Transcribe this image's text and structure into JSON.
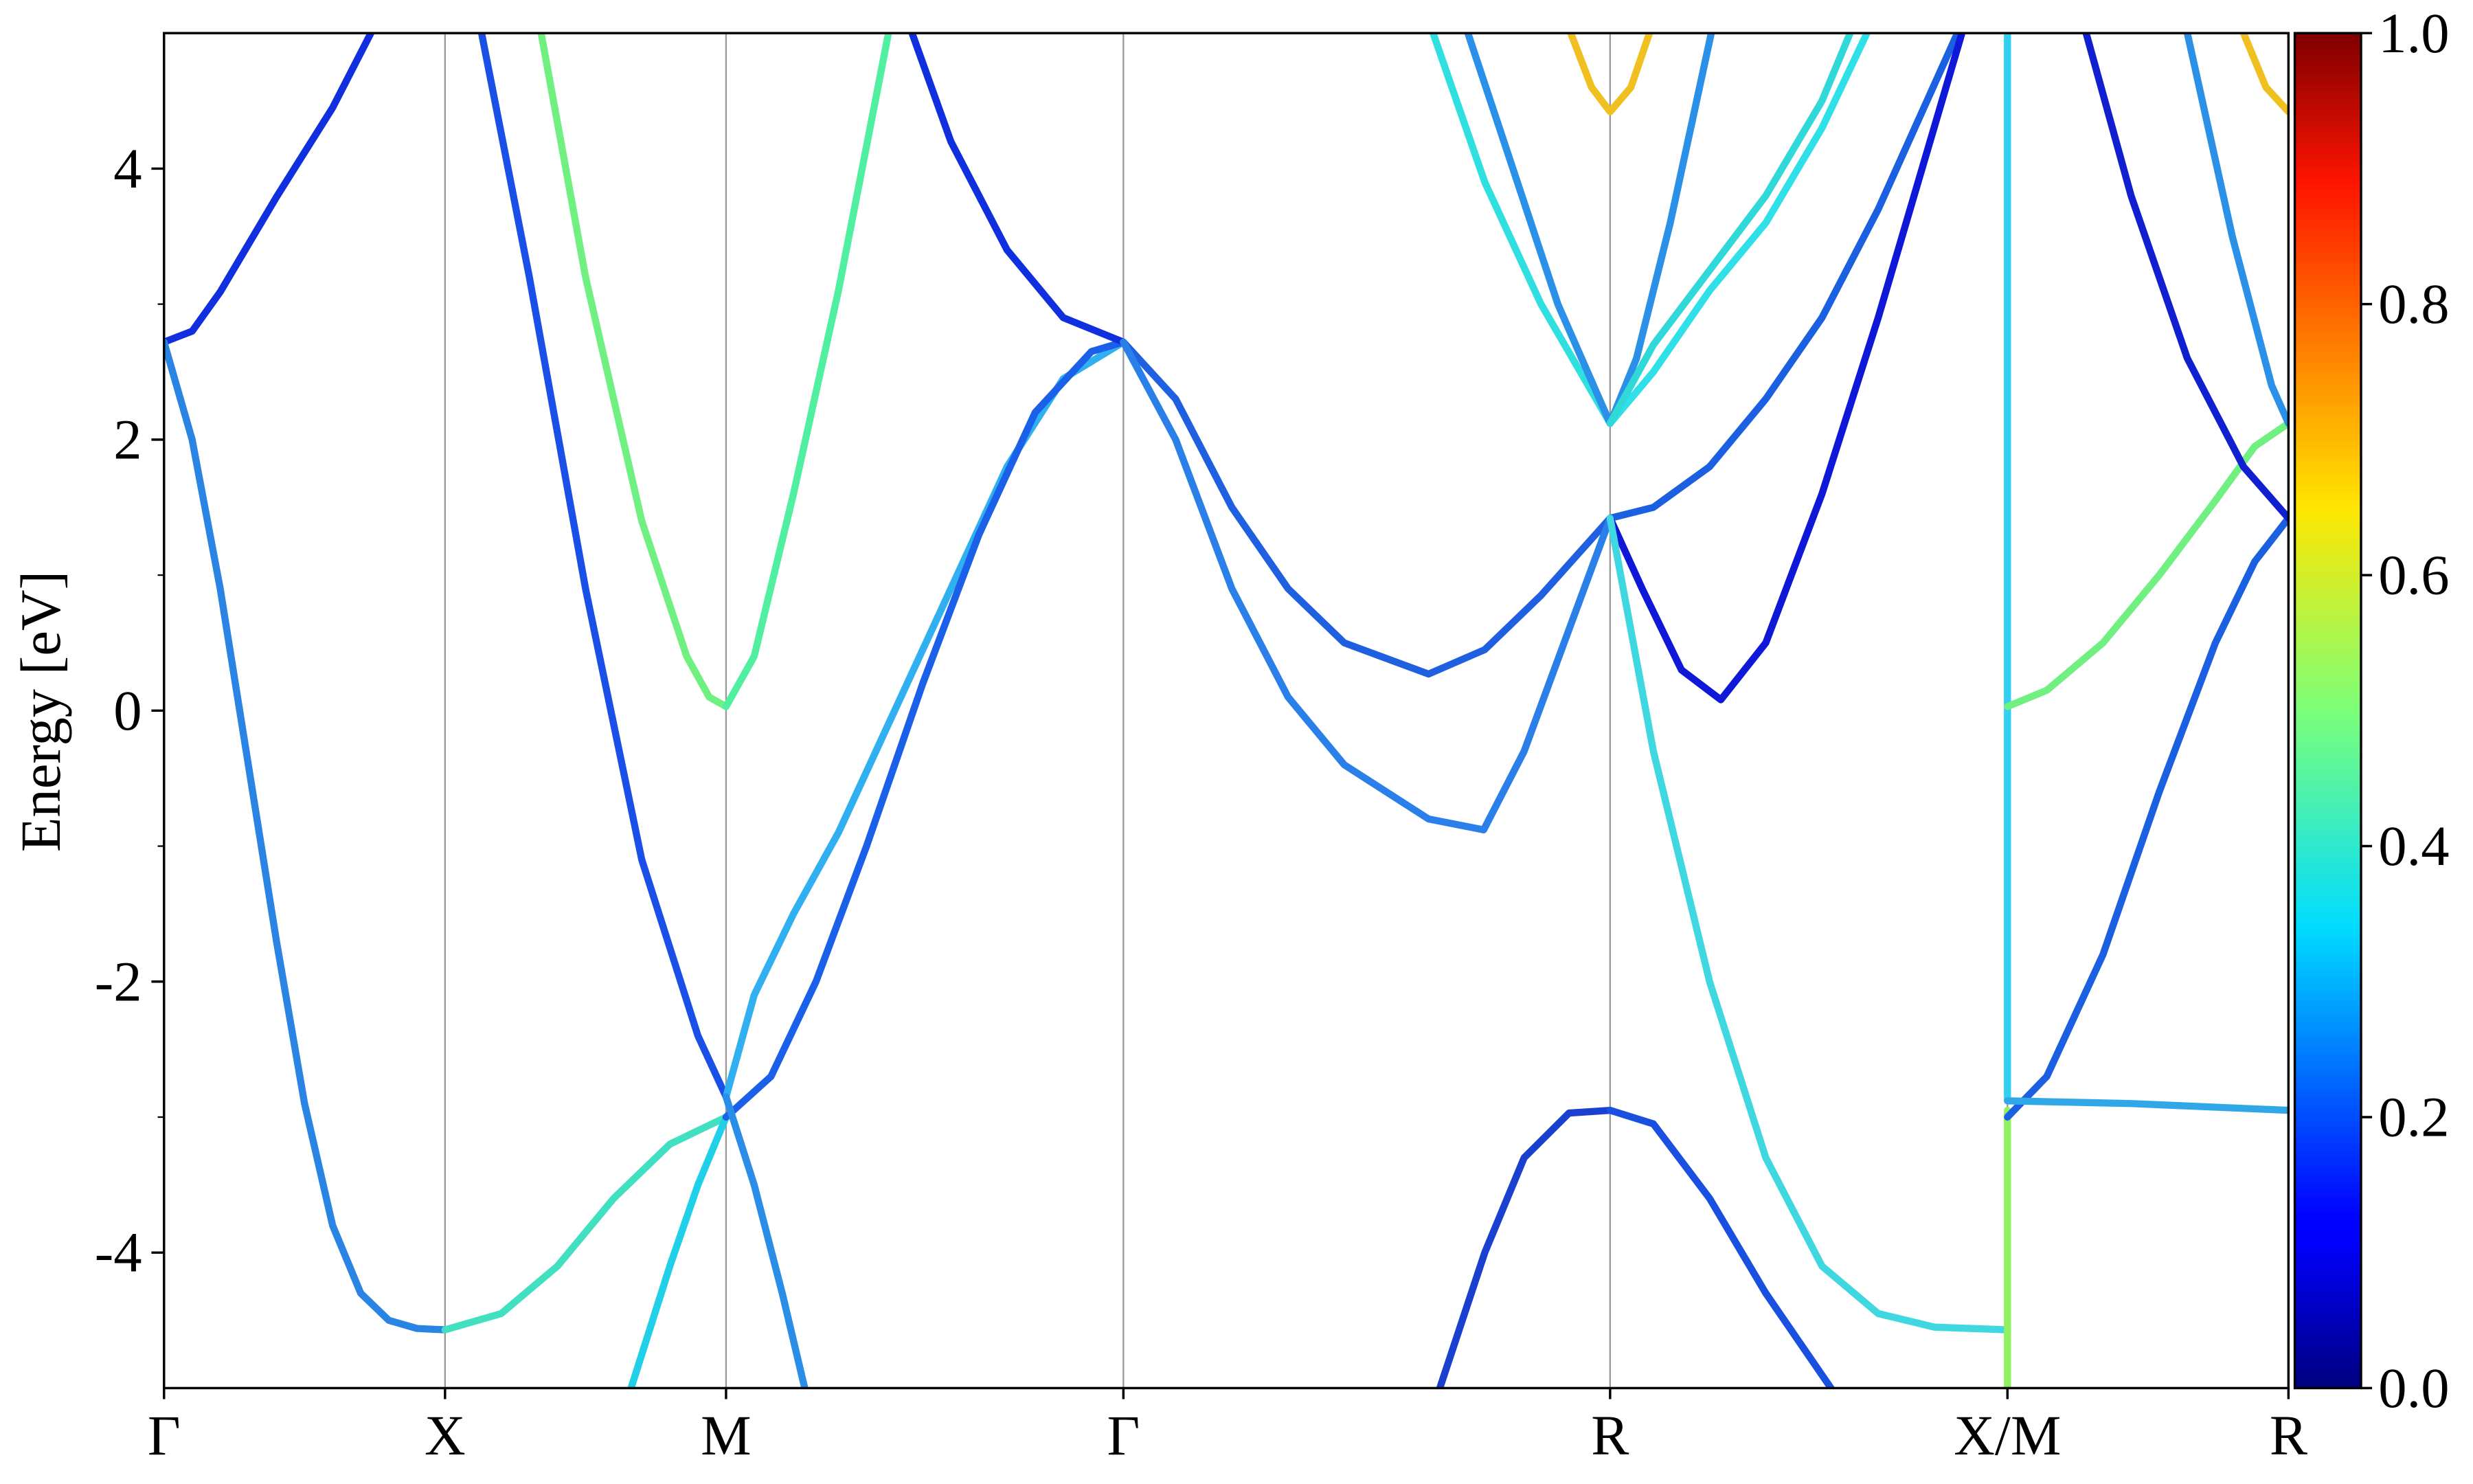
{
  "chart_data": {
    "type": "line",
    "ylabel": "Energy [eV]",
    "xlim": [
      0,
      3.78
    ],
    "ylim": [
      -5,
      5
    ],
    "yticks": [
      -4,
      -2,
      0,
      2,
      4
    ],
    "y_minor_ticks": [
      -3,
      -1,
      1,
      3
    ],
    "xticks": [
      {
        "value": 0,
        "label": "Γ"
      },
      {
        "value": 0.5,
        "label": "X"
      },
      {
        "value": 1.0,
        "label": "M"
      },
      {
        "value": 1.707,
        "label": "Γ"
      },
      {
        "value": 2.573,
        "label": "R"
      },
      {
        "value": 3.28,
        "label": "X/M"
      },
      {
        "value": 3.78,
        "label": "R"
      }
    ],
    "grid": true,
    "colorbar": {
      "lim": [
        0,
        1
      ],
      "ticks": [
        {
          "value": 0,
          "label": "0.0"
        },
        {
          "value": 0.2,
          "label": "0.2"
        },
        {
          "value": 0.4,
          "label": "0.4"
        },
        {
          "value": 0.6,
          "label": "0.6"
        },
        {
          "value": 0.8,
          "label": "0.8"
        },
        {
          "value": 1,
          "label": "1.0"
        }
      ]
    },
    "series": [
      {
        "color": "#1030e0",
        "x": [
          0,
          0.05,
          0.1,
          0.2,
          0.3,
          0.368
        ],
        "values": [
          2.72,
          2.8,
          3.09,
          3.79,
          4.45,
          5
        ]
      },
      {
        "color": "#2a84e4",
        "x": [
          0,
          0.05,
          0.1,
          0.15,
          0.2,
          0.25,
          0.3,
          0.35,
          0.4,
          0.45,
          0.5
        ],
        "values": [
          2.72,
          2.0,
          0.9,
          -0.4,
          -1.7,
          -2.9,
          -3.8,
          -4.3,
          -4.5,
          -4.56,
          -4.57
        ]
      },
      {
        "color": "#40e0c0",
        "x": [
          0.5,
          0.6,
          0.7,
          0.8,
          0.9,
          1.0
        ],
        "values": [
          -4.57,
          -4.45,
          -4.1,
          -3.6,
          -3.2,
          -3.0
        ]
      },
      {
        "color": "#1a50e8",
        "x": [
          0.565,
          0.65,
          0.75,
          0.85,
          0.95,
          1.0
        ],
        "values": [
          5,
          3.2,
          0.9,
          -1.1,
          -2.4,
          -2.85
        ]
      },
      {
        "color": "#70f080",
        "x": [
          0.671,
          0.75,
          0.85,
          0.93,
          0.97,
          1.0
        ],
        "values": [
          5,
          3.2,
          1.4,
          0.4,
          0.1,
          0.03
        ]
      },
      {
        "color": "#20d0e8",
        "x": [
          0.831,
          0.9,
          0.95,
          1.0
        ],
        "values": [
          -5,
          -4.1,
          -3.5,
          -3.0
        ]
      },
      {
        "color": "#50f0a0",
        "x": [
          1.0,
          1.05,
          1.12,
          1.2,
          1.289
        ],
        "values": [
          0.03,
          0.4,
          1.6,
          3.1,
          5
        ]
      },
      {
        "color": "#30b0f0",
        "x": [
          1.0,
          1.05,
          1.12,
          1.2,
          1.3,
          1.4,
          1.5,
          1.6,
          1.707
        ],
        "values": [
          -2.85,
          -2.1,
          -1.5,
          -0.9,
          0.0,
          0.9,
          1.8,
          2.45,
          2.72
        ]
      },
      {
        "color": "#1a60e8",
        "x": [
          1.0,
          1.08,
          1.16,
          1.25,
          1.35,
          1.45,
          1.55,
          1.65,
          1.707
        ],
        "values": [
          -3.0,
          -2.7,
          -2.0,
          -1.0,
          0.2,
          1.3,
          2.2,
          2.65,
          2.72
        ]
      },
      {
        "color": "#2a8ee8",
        "x": [
          1.0,
          1.05,
          1.1,
          1.14
        ],
        "values": [
          -2.85,
          -3.5,
          -4.3,
          -5
        ]
      },
      {
        "color": "#1030e0",
        "x": [
          1.331,
          1.4,
          1.5,
          1.6,
          1.707
        ],
        "values": [
          5,
          4.2,
          3.4,
          2.9,
          2.72
        ]
      },
      {
        "color": "#1e60e0",
        "x": [
          1.707,
          1.8,
          1.9,
          2.0,
          2.1,
          2.25,
          2.35,
          2.45,
          2.573
        ],
        "values": [
          2.72,
          2.3,
          1.5,
          0.9,
          0.5,
          0.27,
          0.45,
          0.85,
          1.42
        ]
      },
      {
        "color": "#2a80e8",
        "x": [
          1.707,
          1.8,
          1.9,
          2.0,
          2.1,
          2.25,
          2.348,
          2.42,
          2.5,
          2.573
        ],
        "values": [
          2.72,
          2.0,
          0.9,
          0.1,
          -0.4,
          -0.8,
          -0.88,
          -0.3,
          0.6,
          1.42
        ]
      },
      {
        "color": "#1a40d0",
        "x": [
          2.27,
          2.35,
          2.42,
          2.5,
          2.573
        ],
        "values": [
          -5,
          -4.0,
          -3.3,
          -2.97,
          -2.95
        ]
      },
      {
        "color": "#30e0e0",
        "x": [
          2.258,
          2.35,
          2.45,
          2.52,
          2.573
        ],
        "values": [
          5,
          3.9,
          3.0,
          2.5,
          2.12
        ]
      },
      {
        "color": "#2a90e8",
        "x": [
          2.32,
          2.4,
          2.48,
          2.573
        ],
        "values": [
          5,
          4.0,
          3.0,
          2.12
        ]
      },
      {
        "color": "#f0c020",
        "x": [
          2.503,
          2.54,
          2.573,
          2.61,
          2.643
        ],
        "values": [
          5,
          4.6,
          4.42,
          4.6,
          5
        ]
      },
      {
        "color": "#1a60e0",
        "x": [
          2.573,
          2.65,
          2.75,
          2.85,
          2.95,
          3.05,
          3.191
        ],
        "values": [
          1.42,
          1.5,
          1.8,
          2.3,
          2.9,
          3.7,
          5
        ]
      },
      {
        "color": "#1018d8",
        "x": [
          2.573,
          2.63,
          2.7,
          2.77,
          2.85,
          2.95,
          3.05,
          3.199
        ],
        "values": [
          1.42,
          0.9,
          0.3,
          0.08,
          0.5,
          1.6,
          2.9,
          5
        ]
      },
      {
        "color": "#40d8e0",
        "x": [
          2.573,
          2.65,
          2.75,
          2.85,
          2.95,
          3.05,
          3.15,
          3.28
        ],
        "values": [
          1.42,
          -0.3,
          -2.0,
          -3.3,
          -4.1,
          -4.45,
          -4.55,
          -4.57
        ]
      },
      {
        "color": "#1a50e0",
        "x": [
          2.573,
          2.65,
          2.75,
          2.85,
          2.966
        ],
        "values": [
          -2.95,
          -3.05,
          -3.6,
          -4.3,
          -5
        ]
      },
      {
        "color": "#2a90e8",
        "x": [
          2.573,
          2.62,
          2.68,
          2.753
        ],
        "values": [
          2.12,
          2.6,
          3.6,
          5
        ]
      },
      {
        "color": "#30e0e8",
        "x": [
          2.573,
          2.65,
          2.75,
          2.85,
          2.95,
          3.03
        ],
        "values": [
          2.12,
          2.5,
          3.1,
          3.6,
          4.3,
          5
        ]
      },
      {
        "color": "#30d8d8",
        "x": [
          2.573,
          2.65,
          2.75,
          2.85,
          2.95,
          3.0
        ],
        "values": [
          2.12,
          2.7,
          3.25,
          3.8,
          4.5,
          5
        ]
      },
      {
        "color": "#30d0f0",
        "x": [
          3.28,
          3.28
        ],
        "values": [
          5,
          -2.88
        ]
      },
      {
        "color": "#90f060",
        "x": [
          3.28,
          3.28
        ],
        "values": [
          -2.95,
          -5
        ]
      },
      {
        "color": "#70f080",
        "x": [
          3.28,
          3.35,
          3.45,
          3.55,
          3.65,
          3.72,
          3.78
        ],
        "values": [
          0.03,
          0.15,
          0.5,
          1.0,
          1.55,
          1.95,
          2.12
        ]
      },
      {
        "color": "#1a60e0",
        "x": [
          3.28,
          3.35,
          3.45,
          3.55,
          3.65,
          3.72,
          3.78
        ],
        "values": [
          -3.0,
          -2.7,
          -1.8,
          -0.6,
          0.5,
          1.1,
          1.42
        ]
      },
      {
        "color": "#30a8e8",
        "x": [
          3.28,
          3.5,
          3.78
        ],
        "values": [
          -2.88,
          -2.9,
          -2.95
        ]
      },
      {
        "color": "#1020d0",
        "x": [
          3.42,
          3.5,
          3.6,
          3.7,
          3.78
        ],
        "values": [
          5,
          3.8,
          2.6,
          1.8,
          1.42
        ]
      },
      {
        "color": "#2a90e8",
        "x": [
          3.6,
          3.68,
          3.75,
          3.78
        ],
        "values": [
          5,
          3.5,
          2.4,
          2.12
        ]
      },
      {
        "color": "#f0c020",
        "x": [
          3.7,
          3.74,
          3.78
        ],
        "values": [
          5,
          4.6,
          4.42
        ]
      }
    ]
  }
}
